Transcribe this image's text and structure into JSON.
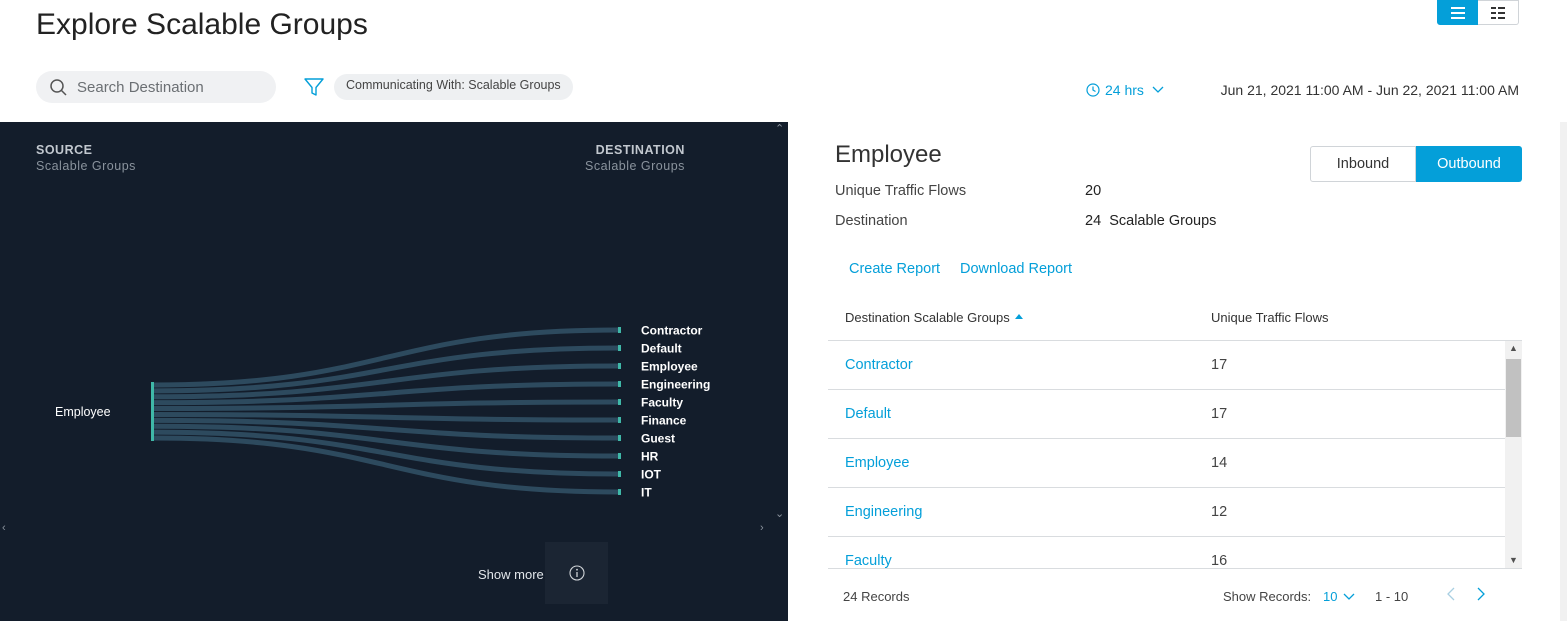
{
  "page": {
    "title": "Explore Scalable Groups"
  },
  "toolbar": {
    "search_placeholder": "Search Destination",
    "filter_chip": "Communicating With: Scalable Groups",
    "time_range": "24 hrs",
    "date_range": "Jun 21, 2021 11:00 AM - Jun 22, 2021 11:00 AM"
  },
  "sankey": {
    "source_title": "SOURCE",
    "source_subtitle": "Scalable Groups",
    "destination_title": "DESTINATION",
    "destination_subtitle": "Scalable Groups",
    "source_node": "Employee",
    "destination_nodes": [
      "Contractor",
      "Default",
      "Employee",
      "Engineering",
      "Faculty",
      "Finance",
      "Guest",
      "HR",
      "IOT",
      "IT"
    ],
    "show_more": "Show more",
    "colors": {
      "background": "#131d2b",
      "node": "#3fb8a8",
      "link": "#2d4a5e"
    }
  },
  "detail": {
    "title": "Employee",
    "flows_label": "Unique Traffic Flows",
    "flows_value": "20",
    "destination_label": "Destination",
    "destination_count": "24",
    "destination_unit": "Scalable Groups",
    "inbound_label": "Inbound",
    "outbound_label": "Outbound",
    "create_report": "Create Report",
    "download_report": "Download Report"
  },
  "table": {
    "col1": "Destination Scalable Groups",
    "col2": "Unique Traffic Flows",
    "rows": [
      {
        "name": "Contractor",
        "flows": "17"
      },
      {
        "name": "Default",
        "flows": "17"
      },
      {
        "name": "Employee",
        "flows": "14"
      },
      {
        "name": "Engineering",
        "flows": "12"
      },
      {
        "name": "Faculty",
        "flows": "16"
      }
    ],
    "records": "24 Records",
    "show_records_label": "Show Records:",
    "show_records_value": "10",
    "range": "1 - 10"
  },
  "colors": {
    "accent": "#049fd9"
  }
}
